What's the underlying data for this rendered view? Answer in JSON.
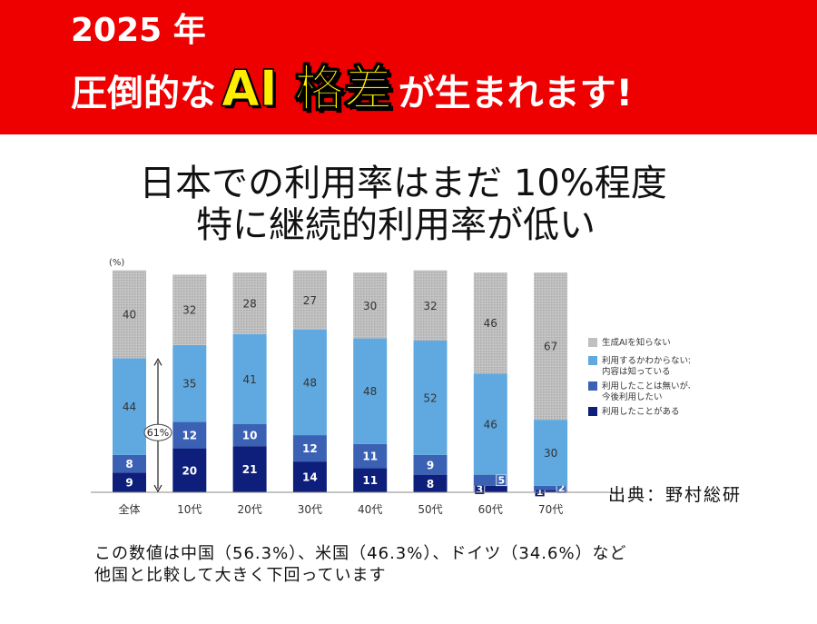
{
  "banner": {
    "line1": "2025 年",
    "line2_prefix": "圧倒的な",
    "line2_highlight": "AI 格差",
    "line2_suffix": "が生まれます!",
    "background_color": "#ee0000",
    "highlight_color": "#ffee00"
  },
  "subtitle": {
    "line1": "日本での利用率はまだ 10%程度",
    "line2": "特に継続的利用率が低い"
  },
  "source": "出典：野村総研",
  "footer": {
    "line1": "この数値は中国（56.3%）、米国（46.3%）、ドイツ（34.6%）など",
    "line2": "他国と比較して大きく下回っています"
  },
  "chart_data": {
    "type": "bar",
    "stacked": true,
    "y_unit": "(%)",
    "categories": [
      "全体",
      "10代",
      "20代",
      "30代",
      "40代",
      "50代",
      "60代",
      "70代"
    ],
    "series": [
      {
        "name": "利用したことがある",
        "color": "#0d1f7a",
        "values": [
          9,
          20,
          21,
          14,
          11,
          8,
          3,
          1
        ]
      },
      {
        "name": "利用したことは無いが、今後利用したい",
        "color": "#3a61b3",
        "values": [
          8,
          12,
          10,
          12,
          11,
          9,
          5,
          2
        ]
      },
      {
        "name": "利用するかわからないが、内容は知っている",
        "color": "#5fa9e0",
        "values": [
          44,
          35,
          41,
          48,
          48,
          52,
          46,
          30
        ]
      },
      {
        "name": "生成AIを知らない",
        "color": "#c0c0c0",
        "values": [
          40,
          32,
          28,
          27,
          30,
          32,
          46,
          67
        ]
      }
    ],
    "annotation": "61%",
    "legend_position": "right",
    "ylim": [
      0,
      100
    ]
  }
}
